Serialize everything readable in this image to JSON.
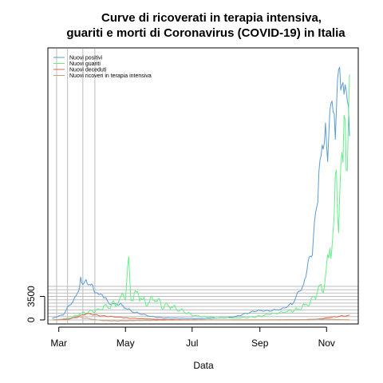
{
  "chart_data": {
    "type": "line",
    "title_line1": "Curve di ricoverati in terapia intensiva,",
    "title_line2": "guariti e morti di Coronavirus (COVID-19) in Italia",
    "xlabel": "Data",
    "ylabel": "",
    "x_start": "2020-02-24",
    "x_end": "2020-11-22",
    "xlim": [
      "2020-02-20",
      "2020-11-30"
    ],
    "ylim": [
      -600,
      40500
    ],
    "grid": "horizontal lines every 500 from 0 to 5000; vertical lines at early March dates",
    "vlines": [
      "2020-02-28",
      "2020-03-09",
      "2020-03-23",
      "2020-04-03"
    ],
    "hlines": [
      0,
      500,
      1000,
      1500,
      2000,
      2500,
      3000,
      3500,
      4000,
      4500,
      5000
    ],
    "x_ticks": [
      {
        "date": "2020-03-01",
        "label": "Mar"
      },
      {
        "date": "2020-05-01",
        "label": "May"
      },
      {
        "date": "2020-07-01",
        "label": "Jul"
      },
      {
        "date": "2020-09-01",
        "label": "Sep"
      },
      {
        "date": "2020-11-01",
        "label": "Nov"
      }
    ],
    "y_ticks": [
      {
        "value": 0,
        "label": "0"
      },
      {
        "value": 3500,
        "label": "3500"
      }
    ],
    "legend_position": "top-left",
    "series": [
      {
        "name": "Nuovi positivi",
        "color": "#5b9bd5",
        "keypoints": [
          [
            "2020-02-24",
            220
          ],
          [
            "2020-03-01",
            570
          ],
          [
            "2020-03-05",
            770
          ],
          [
            "2020-03-09",
            1800
          ],
          [
            "2020-03-13",
            2600
          ],
          [
            "2020-03-16",
            3200
          ],
          [
            "2020-03-19",
            4200
          ],
          [
            "2020-03-21",
            6550
          ],
          [
            "2020-03-23",
            4800
          ],
          [
            "2020-03-26",
            6200
          ],
          [
            "2020-03-29",
            5200
          ],
          [
            "2020-04-02",
            4700
          ],
          [
            "2020-04-06",
            3600
          ],
          [
            "2020-04-10",
            3900
          ],
          [
            "2020-04-14",
            2700
          ],
          [
            "2020-04-20",
            2300
          ],
          [
            "2020-04-25",
            2400
          ],
          [
            "2020-05-01",
            1800
          ],
          [
            "2020-05-08",
            1200
          ],
          [
            "2020-05-15",
            900
          ],
          [
            "2020-05-25",
            500
          ],
          [
            "2020-06-05",
            300
          ],
          [
            "2020-06-20",
            250
          ],
          [
            "2020-07-05",
            200
          ],
          [
            "2020-07-20",
            250
          ],
          [
            "2020-08-01",
            350
          ],
          [
            "2020-08-10",
            500
          ],
          [
            "2020-08-20",
            1000
          ],
          [
            "2020-08-30",
            1400
          ],
          [
            "2020-09-08",
            1300
          ],
          [
            "2020-09-20",
            1600
          ],
          [
            "2020-10-01",
            2400
          ],
          [
            "2020-10-08",
            4500
          ],
          [
            "2020-10-13",
            6000
          ],
          [
            "2020-10-16",
            10000
          ],
          [
            "2020-10-19",
            9300
          ],
          [
            "2020-10-22",
            16000
          ],
          [
            "2020-10-25",
            21000
          ],
          [
            "2020-10-28",
            24900
          ],
          [
            "2020-10-31",
            31700
          ],
          [
            "2020-11-02",
            22200
          ],
          [
            "2020-11-04",
            30500
          ],
          [
            "2020-11-06",
            37000
          ],
          [
            "2020-11-09",
            25200
          ],
          [
            "2020-11-11",
            35100
          ],
          [
            "2020-11-13",
            40900
          ],
          [
            "2020-11-15",
            33900
          ],
          [
            "2020-11-17",
            32100
          ],
          [
            "2020-11-19",
            36100
          ],
          [
            "2020-11-21",
            34700
          ],
          [
            "2020-11-22",
            28300
          ]
        ]
      },
      {
        "name": "Nuovi guariti",
        "color": "#66ee88",
        "keypoints": [
          [
            "2020-02-24",
            0
          ],
          [
            "2020-03-05",
            100
          ],
          [
            "2020-03-12",
            300
          ],
          [
            "2020-03-20",
            900
          ],
          [
            "2020-03-28",
            1200
          ],
          [
            "2020-04-04",
            1400
          ],
          [
            "2020-04-11",
            1800
          ],
          [
            "2020-04-18",
            2200
          ],
          [
            "2020-04-25",
            2500
          ],
          [
            "2020-04-29",
            4000
          ],
          [
            "2020-05-01",
            3500
          ],
          [
            "2020-05-04",
            8000
          ],
          [
            "2020-05-06",
            3000
          ],
          [
            "2020-05-12",
            4000
          ],
          [
            "2020-05-20",
            2300
          ],
          [
            "2020-05-28",
            3300
          ],
          [
            "2020-06-04",
            2000
          ],
          [
            "2020-06-12",
            2000
          ],
          [
            "2020-06-20",
            1500
          ],
          [
            "2020-06-30",
            800
          ],
          [
            "2020-07-10",
            500
          ],
          [
            "2020-07-25",
            300
          ],
          [
            "2020-08-10",
            300
          ],
          [
            "2020-08-25",
            400
          ],
          [
            "2020-09-05",
            700
          ],
          [
            "2020-09-15",
            1000
          ],
          [
            "2020-09-28",
            1300
          ],
          [
            "2020-10-05",
            1500
          ],
          [
            "2020-10-12",
            2000
          ],
          [
            "2020-10-18",
            2800
          ],
          [
            "2020-10-25",
            4500
          ],
          [
            "2020-10-30",
            5500
          ],
          [
            "2020-11-02",
            8000
          ],
          [
            "2020-11-05",
            12000
          ],
          [
            "2020-11-08",
            15000
          ],
          [
            "2020-11-10",
            20000
          ],
          [
            "2020-11-12",
            18000
          ],
          [
            "2020-11-14",
            24000
          ],
          [
            "2020-11-16",
            20000
          ],
          [
            "2020-11-18",
            34000
          ],
          [
            "2020-11-20",
            24000
          ],
          [
            "2020-11-22",
            29000
          ]
        ]
      },
      {
        "name": "Nuovi deceduti",
        "color": "#e06646",
        "keypoints": [
          [
            "2020-02-24",
            0
          ],
          [
            "2020-03-10",
            100
          ],
          [
            "2020-03-20",
            600
          ],
          [
            "2020-03-27",
            950
          ],
          [
            "2020-04-03",
            760
          ],
          [
            "2020-04-12",
            570
          ],
          [
            "2020-04-25",
            400
          ],
          [
            "2020-05-05",
            250
          ],
          [
            "2020-05-20",
            150
          ],
          [
            "2020-06-05",
            70
          ],
          [
            "2020-07-01",
            20
          ],
          [
            "2020-08-01",
            10
          ],
          [
            "2020-09-01",
            10
          ],
          [
            "2020-10-01",
            20
          ],
          [
            "2020-10-15",
            50
          ],
          [
            "2020-10-25",
            150
          ],
          [
            "2020-11-01",
            300
          ],
          [
            "2020-11-08",
            450
          ],
          [
            "2020-11-15",
            600
          ],
          [
            "2020-11-22",
            650
          ]
        ]
      },
      {
        "name": "Nuovi ricoveri in terapia intensiva",
        "color": "#c8a080",
        "keypoints": [
          [
            "2020-02-24",
            0
          ],
          [
            "2020-03-10",
            200
          ],
          [
            "2020-03-20",
            400
          ],
          [
            "2020-04-01",
            100
          ],
          [
            "2020-04-10",
            -100
          ],
          [
            "2020-04-20",
            -150
          ],
          [
            "2020-05-10",
            -100
          ],
          [
            "2020-06-10",
            -30
          ],
          [
            "2020-08-01",
            0
          ],
          [
            "2020-09-01",
            10
          ],
          [
            "2020-10-10",
            50
          ],
          [
            "2020-10-25",
            120
          ],
          [
            "2020-11-05",
            100
          ],
          [
            "2020-11-15",
            50
          ],
          [
            "2020-11-22",
            20
          ]
        ]
      }
    ]
  }
}
